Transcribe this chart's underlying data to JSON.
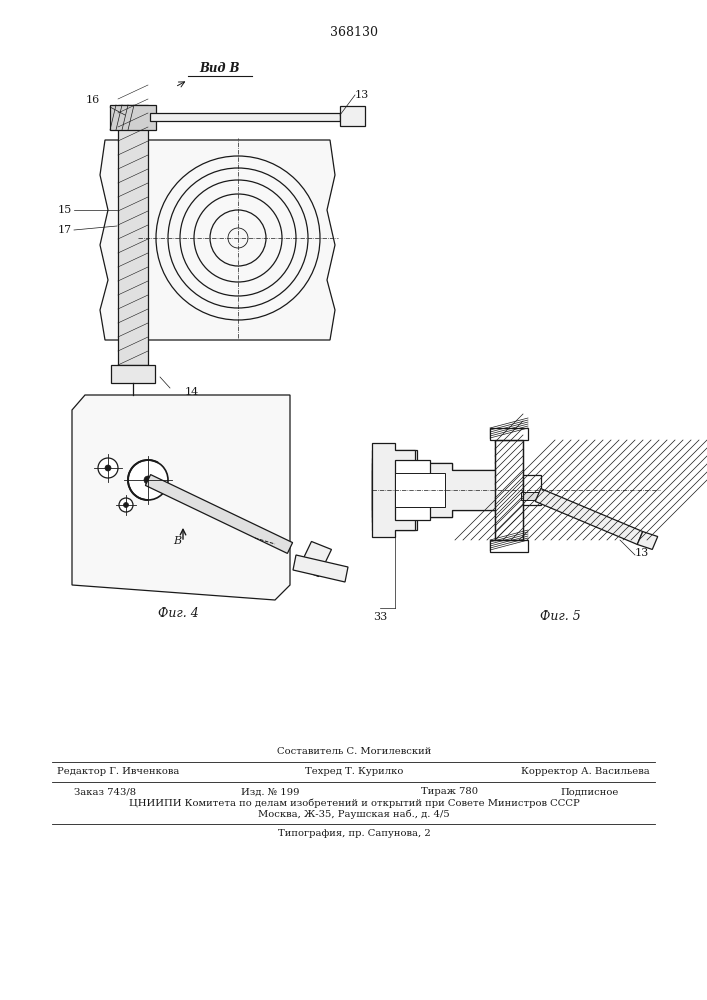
{
  "patent_number": "368130",
  "background_color": "#ffffff",
  "line_color": "#1a1a1a",
  "footer": {
    "sostavitel": "Составитель С. Могилевский",
    "redaktor": "Редактор Г. Ивченкова",
    "tehred": "Техред Т. Курилко",
    "korrektor": "Корректор А. Васильева",
    "zakaz": "Заказ 743/8",
    "izd": "Изд. № 199",
    "tirazh": "Тираж 780",
    "podpisnoe": "Подписное",
    "cniip1": "ЦНИИПИ Комитета по делам изобретений и открытий при Совете Министров СССР",
    "cniip2": "Москва, Ж-35, Раушская наб., д. 4/5",
    "tipografia": "Типография, пр. Сапунова, 2"
  }
}
